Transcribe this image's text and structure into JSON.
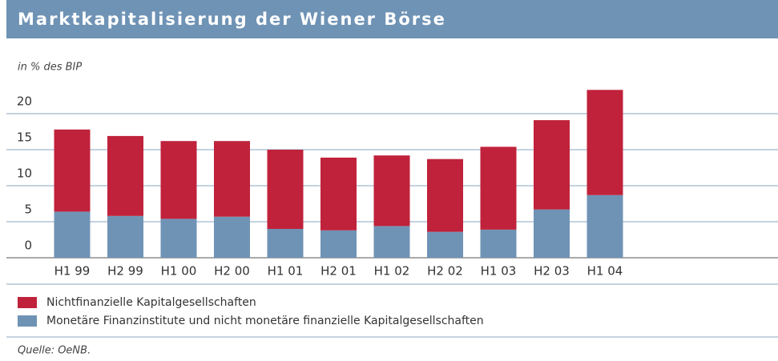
{
  "chart_data": {
    "type": "stacked_bar",
    "title": "Marktkapitalisierung der Wiener Börse",
    "y_label": "in % des BIP",
    "source": "Quelle: OeNB.",
    "categories": [
      "H1 99",
      "H2 99",
      "H1 00",
      "H2 00",
      "H1 01",
      "H2 01",
      "H1 02",
      "H2 02",
      "H1 03",
      "H2 03",
      "H1 04"
    ],
    "series": [
      {
        "name": "Monetäre Finanzinstitute und nicht monetäre finanzielle Kapitalgesellschaften",
        "color": "#6f93b5",
        "values": [
          6.4,
          5.8,
          5.4,
          5.7,
          4.0,
          3.8,
          4.4,
          3.6,
          3.9,
          6.7,
          8.7
        ]
      },
      {
        "name": "Nichtfinanzielle Kapitalgesellschaften",
        "color": "#c0223b",
        "values": [
          11.4,
          11.1,
          10.8,
          10.5,
          11.0,
          10.1,
          9.8,
          10.1,
          11.5,
          12.4,
          14.6
        ]
      }
    ],
    "ylim": [
      0,
      25
    ],
    "yticks": [
      0,
      5,
      10,
      15,
      20
    ],
    "grid": true
  }
}
